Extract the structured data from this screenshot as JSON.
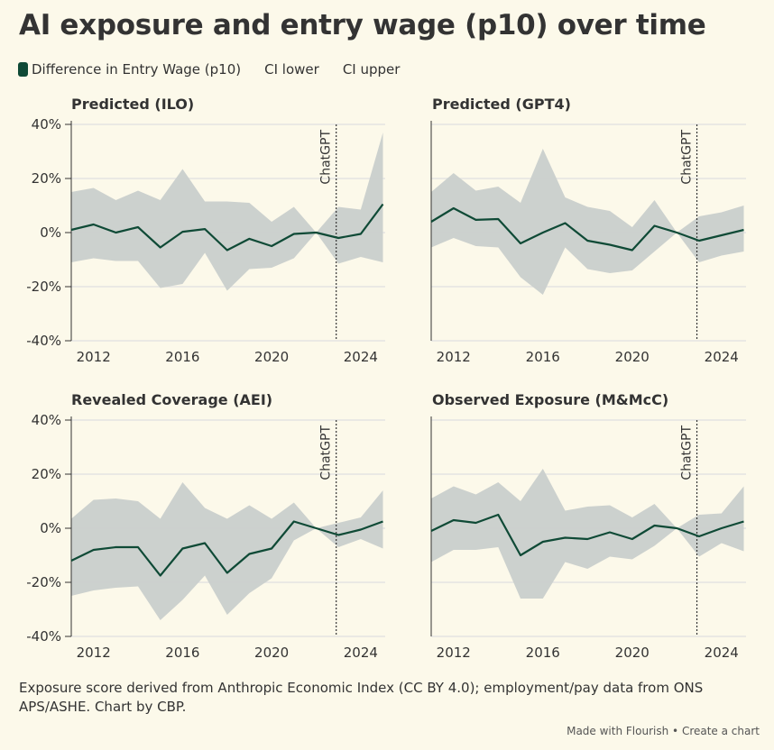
{
  "title": "AI exposure and entry wage (p10) over time",
  "legend": [
    {
      "label": "Difference in Entry Wage (p10)",
      "color": "#0f4a36"
    },
    {
      "label": "CI lower"
    },
    {
      "label": "CI upper"
    }
  ],
  "footer": {
    "note": "Exposure score derived from Anthropic Economic Index (CC BY 4.0); employment/pay data from ONS APS/ASHE. Chart by CBP.",
    "made_with": "Made with Flourish",
    "separator": "•",
    "create": "Create a chart"
  },
  "colors": {
    "line": "#0f4a36",
    "band": "#c9cfcc",
    "grid": "#e3e4e2",
    "axis": "#333333"
  },
  "chart_data": [
    {
      "type": "line",
      "title": "Predicted (ILO)",
      "x": [
        2011,
        2012,
        2013,
        2014,
        2015,
        2016,
        2017,
        2018,
        2019,
        2020,
        2021,
        2022,
        2023,
        2024,
        2025
      ],
      "values": [
        1,
        3,
        0,
        2,
        -5.5,
        0.3,
        1.3,
        -6.5,
        -2.3,
        -5,
        -0.5,
        0,
        -2,
        -0.5,
        10.5
      ],
      "ci_lower": [
        -11,
        -9.5,
        -10.5,
        -10.5,
        -20.5,
        -19,
        -7.5,
        -21.5,
        -13.5,
        -13,
        -9.5,
        0,
        -11.5,
        -9,
        -11
      ],
      "ci_upper": [
        15,
        16.5,
        12,
        15.5,
        12,
        23.5,
        11.5,
        11.5,
        11,
        4,
        9.5,
        0,
        9.5,
        8.5,
        37
      ],
      "xticks": [
        "2012",
        "2016",
        "2020",
        "2024"
      ],
      "yticks": [
        "40%",
        "20%",
        "0%",
        "-20%",
        "-40%"
      ],
      "ylim": [
        -40,
        40
      ],
      "annotation": {
        "x": 2022.9,
        "label": "ChatGPT"
      }
    },
    {
      "type": "line",
      "title": "Predicted (GPT4)",
      "x": [
        2011,
        2012,
        2013,
        2014,
        2015,
        2016,
        2017,
        2018,
        2019,
        2020,
        2021,
        2022,
        2023,
        2024,
        2025
      ],
      "values": [
        4,
        9,
        4.7,
        5,
        -4,
        0,
        3.5,
        -3,
        -4.5,
        -6.5,
        2.5,
        0,
        -3,
        -1,
        1
      ],
      "ci_lower": [
        -5.5,
        -2,
        -5,
        -5.5,
        -16.5,
        -23,
        -5.5,
        -13.5,
        -15,
        -14,
        -7,
        0,
        -11,
        -8.5,
        -7
      ],
      "ci_upper": [
        15,
        22,
        15.5,
        17,
        11,
        31,
        13,
        9.5,
        8,
        2,
        12,
        0,
        6,
        7.5,
        10
      ],
      "xticks": [
        "2012",
        "2016",
        "2020",
        "2024"
      ],
      "yticks": [],
      "ylim": [
        -40,
        40
      ],
      "annotation": {
        "x": 2022.9,
        "label": "ChatGPT"
      }
    },
    {
      "type": "line",
      "title": "Revealed Coverage (AEI)",
      "x": [
        2011,
        2012,
        2013,
        2014,
        2015,
        2016,
        2017,
        2018,
        2019,
        2020,
        2021,
        2022,
        2023,
        2024,
        2025
      ],
      "values": [
        -12,
        -8,
        -7,
        -7,
        -17.5,
        -7.5,
        -5.5,
        -16.5,
        -9.5,
        -7.5,
        2.5,
        0,
        -2.5,
        -0.5,
        2.5
      ],
      "ci_lower": [
        -25,
        -23,
        -22,
        -21.5,
        -34,
        -26.5,
        -17.5,
        -32,
        -24,
        -18.5,
        -4.5,
        0,
        -7,
        -4,
        -7.5
      ],
      "ci_upper": [
        3.5,
        10.5,
        11,
        10,
        3.5,
        17,
        7.5,
        3.5,
        8.5,
        3.5,
        9.5,
        0,
        2,
        4,
        14
      ],
      "xticks": [
        "2012",
        "2016",
        "2020",
        "2024"
      ],
      "yticks": [
        "40%",
        "20%",
        "0%",
        "-20%",
        "-40%"
      ],
      "ylim": [
        -40,
        40
      ],
      "annotation": {
        "x": 2022.9,
        "label": "ChatGPT"
      }
    },
    {
      "type": "line",
      "title": "Observed Exposure (M&McC)",
      "x": [
        2011,
        2012,
        2013,
        2014,
        2015,
        2016,
        2017,
        2018,
        2019,
        2020,
        2021,
        2022,
        2023,
        2024,
        2025
      ],
      "values": [
        -1,
        3,
        2,
        5,
        -10,
        -5,
        -3.5,
        -4,
        -1.5,
        -4,
        1,
        0,
        -3,
        0,
        2.5
      ],
      "ci_lower": [
        -12.5,
        -8,
        -8,
        -7,
        -26,
        -26,
        -12.5,
        -15,
        -10.5,
        -11.5,
        -6.5,
        0,
        -10.5,
        -5.5,
        -8.5
      ],
      "ci_upper": [
        11,
        15.5,
        12.5,
        17,
        10,
        22,
        6.5,
        8,
        8.5,
        4,
        9,
        0,
        5,
        5.5,
        15.5
      ],
      "xticks": [
        "2012",
        "2016",
        "2020",
        "2024"
      ],
      "yticks": [],
      "ylim": [
        -40,
        40
      ],
      "annotation": {
        "x": 2022.9,
        "label": "ChatGPT"
      }
    }
  ]
}
